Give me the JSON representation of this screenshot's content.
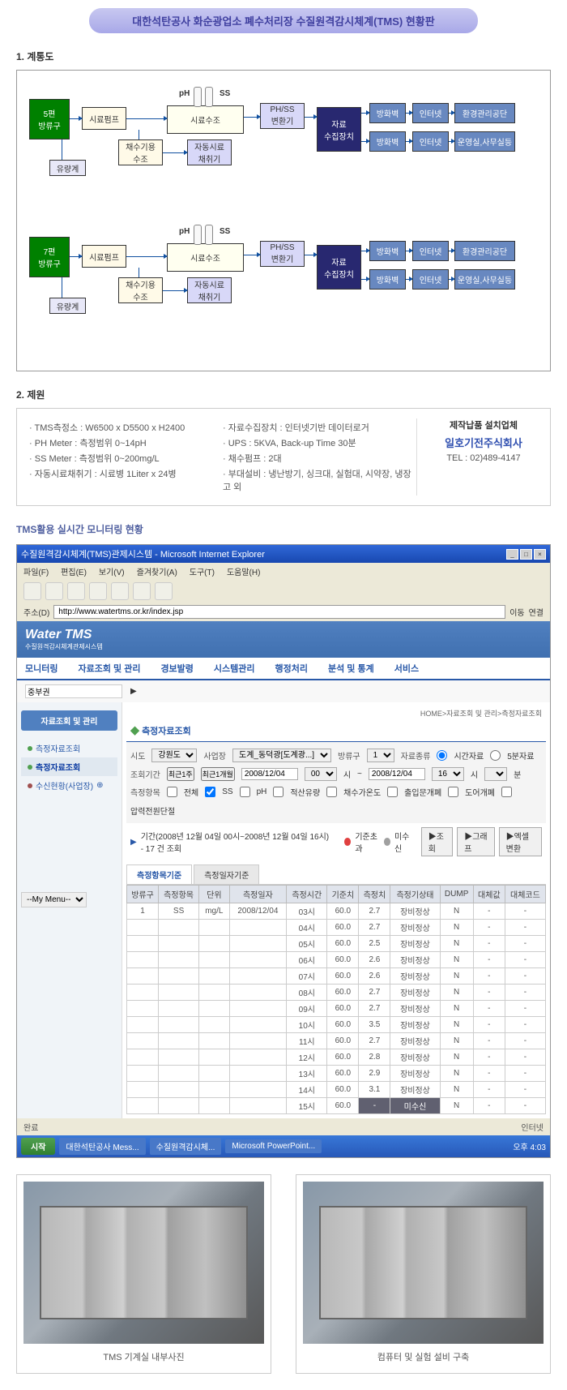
{
  "title": "대한석탄공사 화순광업소 폐수처리장 수질원격감시체계(TMS) 현황판",
  "sec1": "1. 계통도",
  "sec2": "2. 제원",
  "sec3": "TMS활용 실시간 모니터링 현황",
  "diagram": {
    "outlet5": "5편\n방류구",
    "outlet7": "7편\n방류구",
    "pump": "시료펌프",
    "flow": "유량계",
    "watertank": "채수기용\n수조",
    "sampletank": "시료수조",
    "autosampler": "자동시료\n채취기",
    "ph": "pH",
    "ss": "SS",
    "converter": "PH/SS\n변환기",
    "collector": "자료\n수집장치",
    "firewall": "방화벽",
    "internet": "인터넷",
    "envcorp": "환경관리공단",
    "office": "운영실,사무실등"
  },
  "spec": {
    "left": [
      "TMS측정소 : W6500 x D5500 x H2400",
      "PH Meter : 측정범위 0~14pH",
      "SS Meter : 측정범위 0~200mg/L",
      "자동시료채취기 : 시료병 1Liter x 24병"
    ],
    "right": [
      "자료수집장치 : 인터넷기반 데이터로거",
      "UPS : 5KVA, Back-up Time 30분",
      "채수펌프 : 2대",
      "부대설비 : 냉난방기, 싱크대, 실험대, 시약장, 냉장고 외"
    ],
    "contact_l1": "제작납품 설치업체",
    "contact_l2": "일호기전주식회사",
    "contact_l3": "TEL : 02)489-4147"
  },
  "browser": {
    "title": "수질원격감시체계(TMS)관제시스템 - Microsoft Internet Explorer",
    "menu": [
      "파일(F)",
      "편집(E)",
      "보기(V)",
      "즐겨찾기(A)",
      "도구(T)",
      "도움말(H)"
    ],
    "addr_label": "주소(D)",
    "addr_value": "http://www.watertms.or.kr/index.jsp",
    "go": "이동",
    "links": "연결"
  },
  "tms": {
    "logo": "Water TMS",
    "logo_sub": "수질원격감시체계관제시스템",
    "nav": [
      "모니터링",
      "자료조회 및 관리",
      "경보발령",
      "시스템관리",
      "행정처리",
      "분석 및 통계",
      "서비스"
    ],
    "sub_label": "중부권",
    "crumb": "HOME>자료조회 및 관리>측정자료조회",
    "panel_title": "측정자료조회",
    "side_title": "자료조회 및 관리",
    "side_items": [
      "측정자료조회",
      "측정자료조회",
      "수신현황(사업장)"
    ],
    "my_menu": "--My Menu--",
    "f_sido": "시도",
    "f_sido_v": "강원도",
    "f_biz": "사업장",
    "f_biz_v": "도계_동덕광[도계광...]",
    "f_out": "방류구",
    "f_out_v": "1",
    "f_type": "자료종류",
    "f_type_a": "시간자료",
    "f_type_b": "5분자료",
    "f_period": "조회기간",
    "f_btn1": "최근1주",
    "f_btn2": "최근1개월",
    "f_date1": "2008/12/04",
    "f_date2": "2008/12/04",
    "f_t1": "00",
    "f_t2": "16",
    "f_hr": "시",
    "f_min": "분",
    "f_item": "측정항목",
    "f_all": "전체",
    "f_ss": "SS",
    "f_ph": "pH",
    "f_oil": "적산유량",
    "f_temp": "채수가온도",
    "f_door": "출입문개폐",
    "f_lid": "도어개폐",
    "f_power": "압력전원단절",
    "f_range": "기간(2008년 12월 04일 00시~2008년 12월 04일 16시) - 17 건 조회",
    "leg_over": "기준초과",
    "leg_norx": "미수신",
    "btn_q": "조회",
    "btn_g": "그래프",
    "btn_x": "엑셀변환",
    "tab1": "측정항목기준",
    "tab2": "측정일자기준",
    "cols": [
      "방류구",
      "측정항목",
      "단위",
      "측정일자",
      "측정시간",
      "기준치",
      "측정치",
      "측정기상태",
      "DUMP",
      "대체값",
      "대체코드"
    ],
    "rows": [
      [
        "1",
        "SS",
        "mg/L",
        "2008/12/04",
        "03시",
        "60.0",
        "2.7",
        "장비정상",
        "N",
        "-",
        "-"
      ],
      [
        "",
        "",
        "",
        "",
        "04시",
        "60.0",
        "2.7",
        "장비정상",
        "N",
        "-",
        "-"
      ],
      [
        "",
        "",
        "",
        "",
        "05시",
        "60.0",
        "2.5",
        "장비정상",
        "N",
        "-",
        "-"
      ],
      [
        "",
        "",
        "",
        "",
        "06시",
        "60.0",
        "2.6",
        "장비정상",
        "N",
        "-",
        "-"
      ],
      [
        "",
        "",
        "",
        "",
        "07시",
        "60.0",
        "2.6",
        "장비정상",
        "N",
        "-",
        "-"
      ],
      [
        "",
        "",
        "",
        "",
        "08시",
        "60.0",
        "2.7",
        "장비정상",
        "N",
        "-",
        "-"
      ],
      [
        "",
        "",
        "",
        "",
        "09시",
        "60.0",
        "2.7",
        "장비정상",
        "N",
        "-",
        "-"
      ],
      [
        "",
        "",
        "",
        "",
        "10시",
        "60.0",
        "3.5",
        "장비정상",
        "N",
        "-",
        "-"
      ],
      [
        "",
        "",
        "",
        "",
        "11시",
        "60.0",
        "2.7",
        "장비정상",
        "N",
        "-",
        "-"
      ],
      [
        "",
        "",
        "",
        "",
        "12시",
        "60.0",
        "2.8",
        "장비정상",
        "N",
        "-",
        "-"
      ],
      [
        "",
        "",
        "",
        "",
        "13시",
        "60.0",
        "2.9",
        "장비정상",
        "N",
        "-",
        "-"
      ],
      [
        "",
        "",
        "",
        "",
        "14시",
        "60.0",
        "3.1",
        "장비정상",
        "N",
        "-",
        "-"
      ],
      [
        "",
        "",
        "",
        "",
        "15시",
        "60.0",
        "-",
        "미수신",
        "N",
        "-",
        "-"
      ]
    ],
    "status_done": "완료",
    "status_net": "인터넷"
  },
  "taskbar": {
    "start": "시작",
    "items": [
      "대한석탄공사 Mess...",
      "수질원격감시체...",
      "Microsoft PowerPoint..."
    ],
    "time": "오후 4:03"
  },
  "photos": {
    "cap1": "TMS 기계실 내부사진",
    "cap2": "컴퓨터 및 실험 설비 구축"
  }
}
